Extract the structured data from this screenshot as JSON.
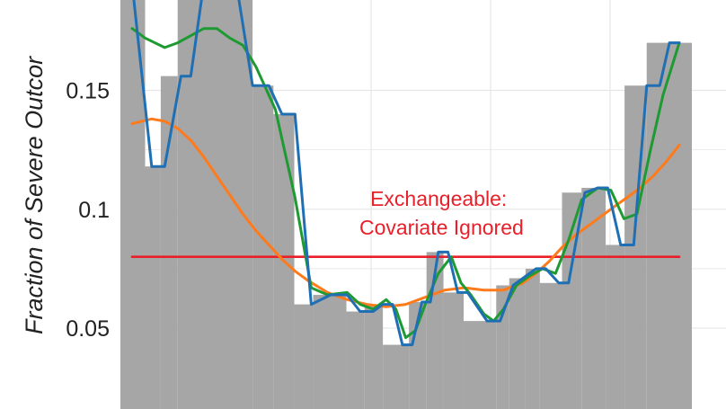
{
  "chart_data": {
    "type": "line",
    "ylabel": "Fraction of Severe Outcor",
    "yticks": [
      {
        "value": 0.05,
        "label": "0.05"
      },
      {
        "value": 0.1,
        "label": "0.1"
      },
      {
        "value": 0.15,
        "label": "0.15"
      }
    ],
    "ylim": [
      0.016,
      0.188
    ],
    "xlim": [
      0,
      100
    ],
    "grid": true,
    "background_color": "#ffffff",
    "grid_color": "#e6e6e6",
    "histogram": {
      "color": "#a6a6a6",
      "bars": [
        {
          "x0": -2,
          "x1": 2,
          "y": 0.19
        },
        {
          "x0": 2,
          "x1": 4.4,
          "y": 0.118
        },
        {
          "x0": 4.4,
          "x1": 7,
          "y": 0.156
        },
        {
          "x0": 7,
          "x1": 10,
          "y": 0.19
        },
        {
          "x0": 10,
          "x1": 18.5,
          "y": 0.19
        },
        {
          "x0": 18.5,
          "x1": 21.7,
          "y": 0.152
        },
        {
          "x0": 21.7,
          "x1": 24.9,
          "y": 0.14
        },
        {
          "x0": 24.9,
          "x1": 27.8,
          "y": 0.06
        },
        {
          "x0": 27.8,
          "x1": 32.9,
          "y": 0.064
        },
        {
          "x0": 32.9,
          "x1": 35.7,
          "y": 0.057
        },
        {
          "x0": 35.7,
          "x1": 38.5,
          "y": 0.06
        },
        {
          "x0": 38.5,
          "x1": 42.5,
          "y": 0.043
        },
        {
          "x0": 42.5,
          "x1": 45.2,
          "y": 0.061
        },
        {
          "x0": 45.2,
          "x1": 47.8,
          "y": 0.082
        },
        {
          "x0": 47.8,
          "x1": 50.9,
          "y": 0.065
        },
        {
          "x0": 50.9,
          "x1": 55.9,
          "y": 0.053
        },
        {
          "x0": 55.9,
          "x1": 57.9,
          "y": 0.068
        },
        {
          "x0": 57.9,
          "x1": 60.4,
          "y": 0.071
        },
        {
          "x0": 60.4,
          "x1": 62.6,
          "y": 0.075
        },
        {
          "x0": 62.6,
          "x1": 66,
          "y": 0.069
        },
        {
          "x0": 66,
          "x1": 69,
          "y": 0.107
        },
        {
          "x0": 69,
          "x1": 72.7,
          "y": 0.109
        },
        {
          "x0": 72.7,
          "x1": 75.6,
          "y": 0.085
        },
        {
          "x0": 75.6,
          "x1": 79,
          "y": 0.152
        },
        {
          "x0": 79,
          "x1": 102,
          "y": 0.17
        }
      ]
    },
    "series": [
      {
        "color": "#1f6fb5",
        "x": [
          0,
          3,
          5,
          7.5,
          9,
          11,
          16,
          18.5,
          21,
          23,
          25,
          27.5,
          30.5,
          33,
          35,
          37,
          38.5,
          40,
          41.5,
          43,
          44.5,
          45.8,
          47,
          48.5,
          50,
          51.5,
          54.5,
          56.5,
          58.5,
          60,
          62,
          63.5,
          65.5,
          67,
          69.5,
          71.5,
          73,
          75,
          77,
          79,
          81,
          82.5,
          84
        ],
        "y": [
          0.195,
          0.118,
          0.118,
          0.156,
          0.156,
          0.195,
          0.195,
          0.152,
          0.152,
          0.14,
          0.14,
          0.06,
          0.064,
          0.064,
          0.057,
          0.057,
          0.06,
          0.06,
          0.043,
          0.043,
          0.061,
          0.061,
          0.082,
          0.082,
          0.065,
          0.065,
          0.053,
          0.053,
          0.068,
          0.071,
          0.075,
          0.075,
          0.069,
          0.069,
          0.107,
          0.109,
          0.109,
          0.085,
          0.085,
          0.152,
          0.152,
          0.17,
          0.17
        ]
      },
      {
        "color": "#1e9a33",
        "x": [
          0,
          2,
          5,
          7,
          9,
          11,
          13,
          15,
          17,
          19,
          22,
          25,
          27.5,
          30,
          33,
          35,
          37,
          39,
          40.5,
          42,
          43.5,
          45,
          47,
          49,
          50.5,
          52,
          54,
          55.5,
          57,
          59,
          61,
          63,
          65,
          67,
          69,
          71.5,
          73.5,
          75.5,
          77.5,
          79.5,
          81.5,
          84
        ],
        "y": [
          0.176,
          0.172,
          0.168,
          0.17,
          0.173,
          0.176,
          0.176,
          0.172,
          0.169,
          0.16,
          0.142,
          0.105,
          0.067,
          0.064,
          0.065,
          0.06,
          0.058,
          0.062,
          0.058,
          0.046,
          0.049,
          0.06,
          0.073,
          0.08,
          0.069,
          0.064,
          0.056,
          0.053,
          0.058,
          0.068,
          0.072,
          0.075,
          0.073,
          0.087,
          0.104,
          0.109,
          0.108,
          0.096,
          0.098,
          0.124,
          0.148,
          0.17
        ]
      },
      {
        "color": "#ff7a1a",
        "x": [
          0,
          1.5,
          3,
          5,
          7,
          9,
          11,
          13,
          15,
          17,
          19,
          21,
          23,
          25,
          27,
          30,
          33,
          36,
          39,
          42,
          45,
          48,
          51,
          54,
          57,
          60,
          62,
          64,
          66,
          68,
          70,
          72,
          74,
          76,
          78,
          80,
          82,
          84
        ],
        "y": [
          0.136,
          0.137,
          0.138,
          0.137,
          0.134,
          0.129,
          0.122,
          0.114,
          0.106,
          0.098,
          0.091,
          0.085,
          0.079,
          0.074,
          0.07,
          0.065,
          0.062,
          0.06,
          0.059,
          0.06,
          0.063,
          0.066,
          0.067,
          0.066,
          0.066,
          0.069,
          0.073,
          0.078,
          0.084,
          0.089,
          0.093,
          0.097,
          0.101,
          0.105,
          0.109,
          0.114,
          0.12,
          0.127
        ]
      },
      {
        "color": "#e8202a",
        "x": [
          0,
          84
        ],
        "y": [
          0.08,
          0.08
        ]
      }
    ],
    "annotation": {
      "lines": [
        "Exchangeable:",
        "Covariate Ignored"
      ],
      "x": 47.5,
      "y": 0.1,
      "color": "#e8202a"
    }
  }
}
